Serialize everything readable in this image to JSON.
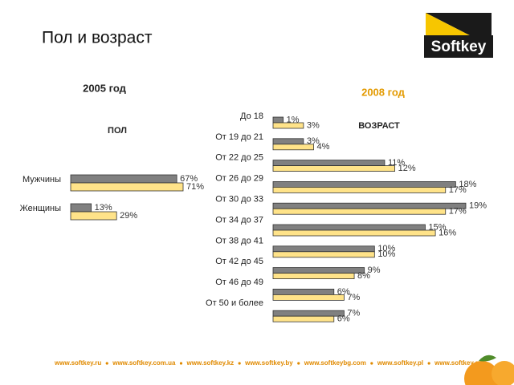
{
  "title": "Пол и возраст",
  "logo": "Softkey",
  "footer": [
    "www.softkey.ru",
    "www.softkey.com.ua",
    "www.softkey.kz",
    "www.softkey.by",
    "www.softkeybg.com",
    "www.softkey.pl",
    "www.softkey.ee"
  ],
  "chart_data": [
    {
      "type": "hbar",
      "title": "ПОЛ",
      "categories": [
        "Мужчины",
        "Женщины"
      ],
      "series": [
        {
          "name": "2005 год",
          "color": "#808080",
          "values": [
            67,
            13
          ],
          "value_labels": [
            "67%",
            "13%"
          ]
        },
        {
          "name": "2008 год",
          "color": "#ffe389",
          "values": [
            71,
            29
          ],
          "value_labels": [
            "71%",
            "29%"
          ]
        }
      ]
    },
    {
      "type": "hbar",
      "title": "ВОЗРАСТ",
      "categories": [
        "До 18",
        "От 19 до 21",
        "От 22 до 25",
        "От 26 до 29",
        "От 30 до 33",
        "От 34 до 37",
        "От 38 до 41",
        "От 42 до 45",
        "От 46 до 49",
        "От 50 и более"
      ],
      "series": [
        {
          "color": "#808080",
          "values": [
            1,
            3,
            11,
            18,
            19,
            15,
            10,
            9,
            6,
            7
          ],
          "value_labels": [
            "1%",
            "3%",
            "11%",
            "18%",
            "19%",
            "15%",
            "10%",
            "9%",
            "6%",
            "7%"
          ]
        },
        {
          "color": "#ffe389",
          "values": [
            3,
            4,
            12,
            17,
            17,
            16,
            10,
            8,
            7,
            6
          ],
          "value_labels": [
            "3%",
            "4%",
            "12%",
            "17%",
            "17%",
            "16%",
            "10%",
            "8%",
            "7%",
            "6%"
          ]
        }
      ]
    }
  ]
}
